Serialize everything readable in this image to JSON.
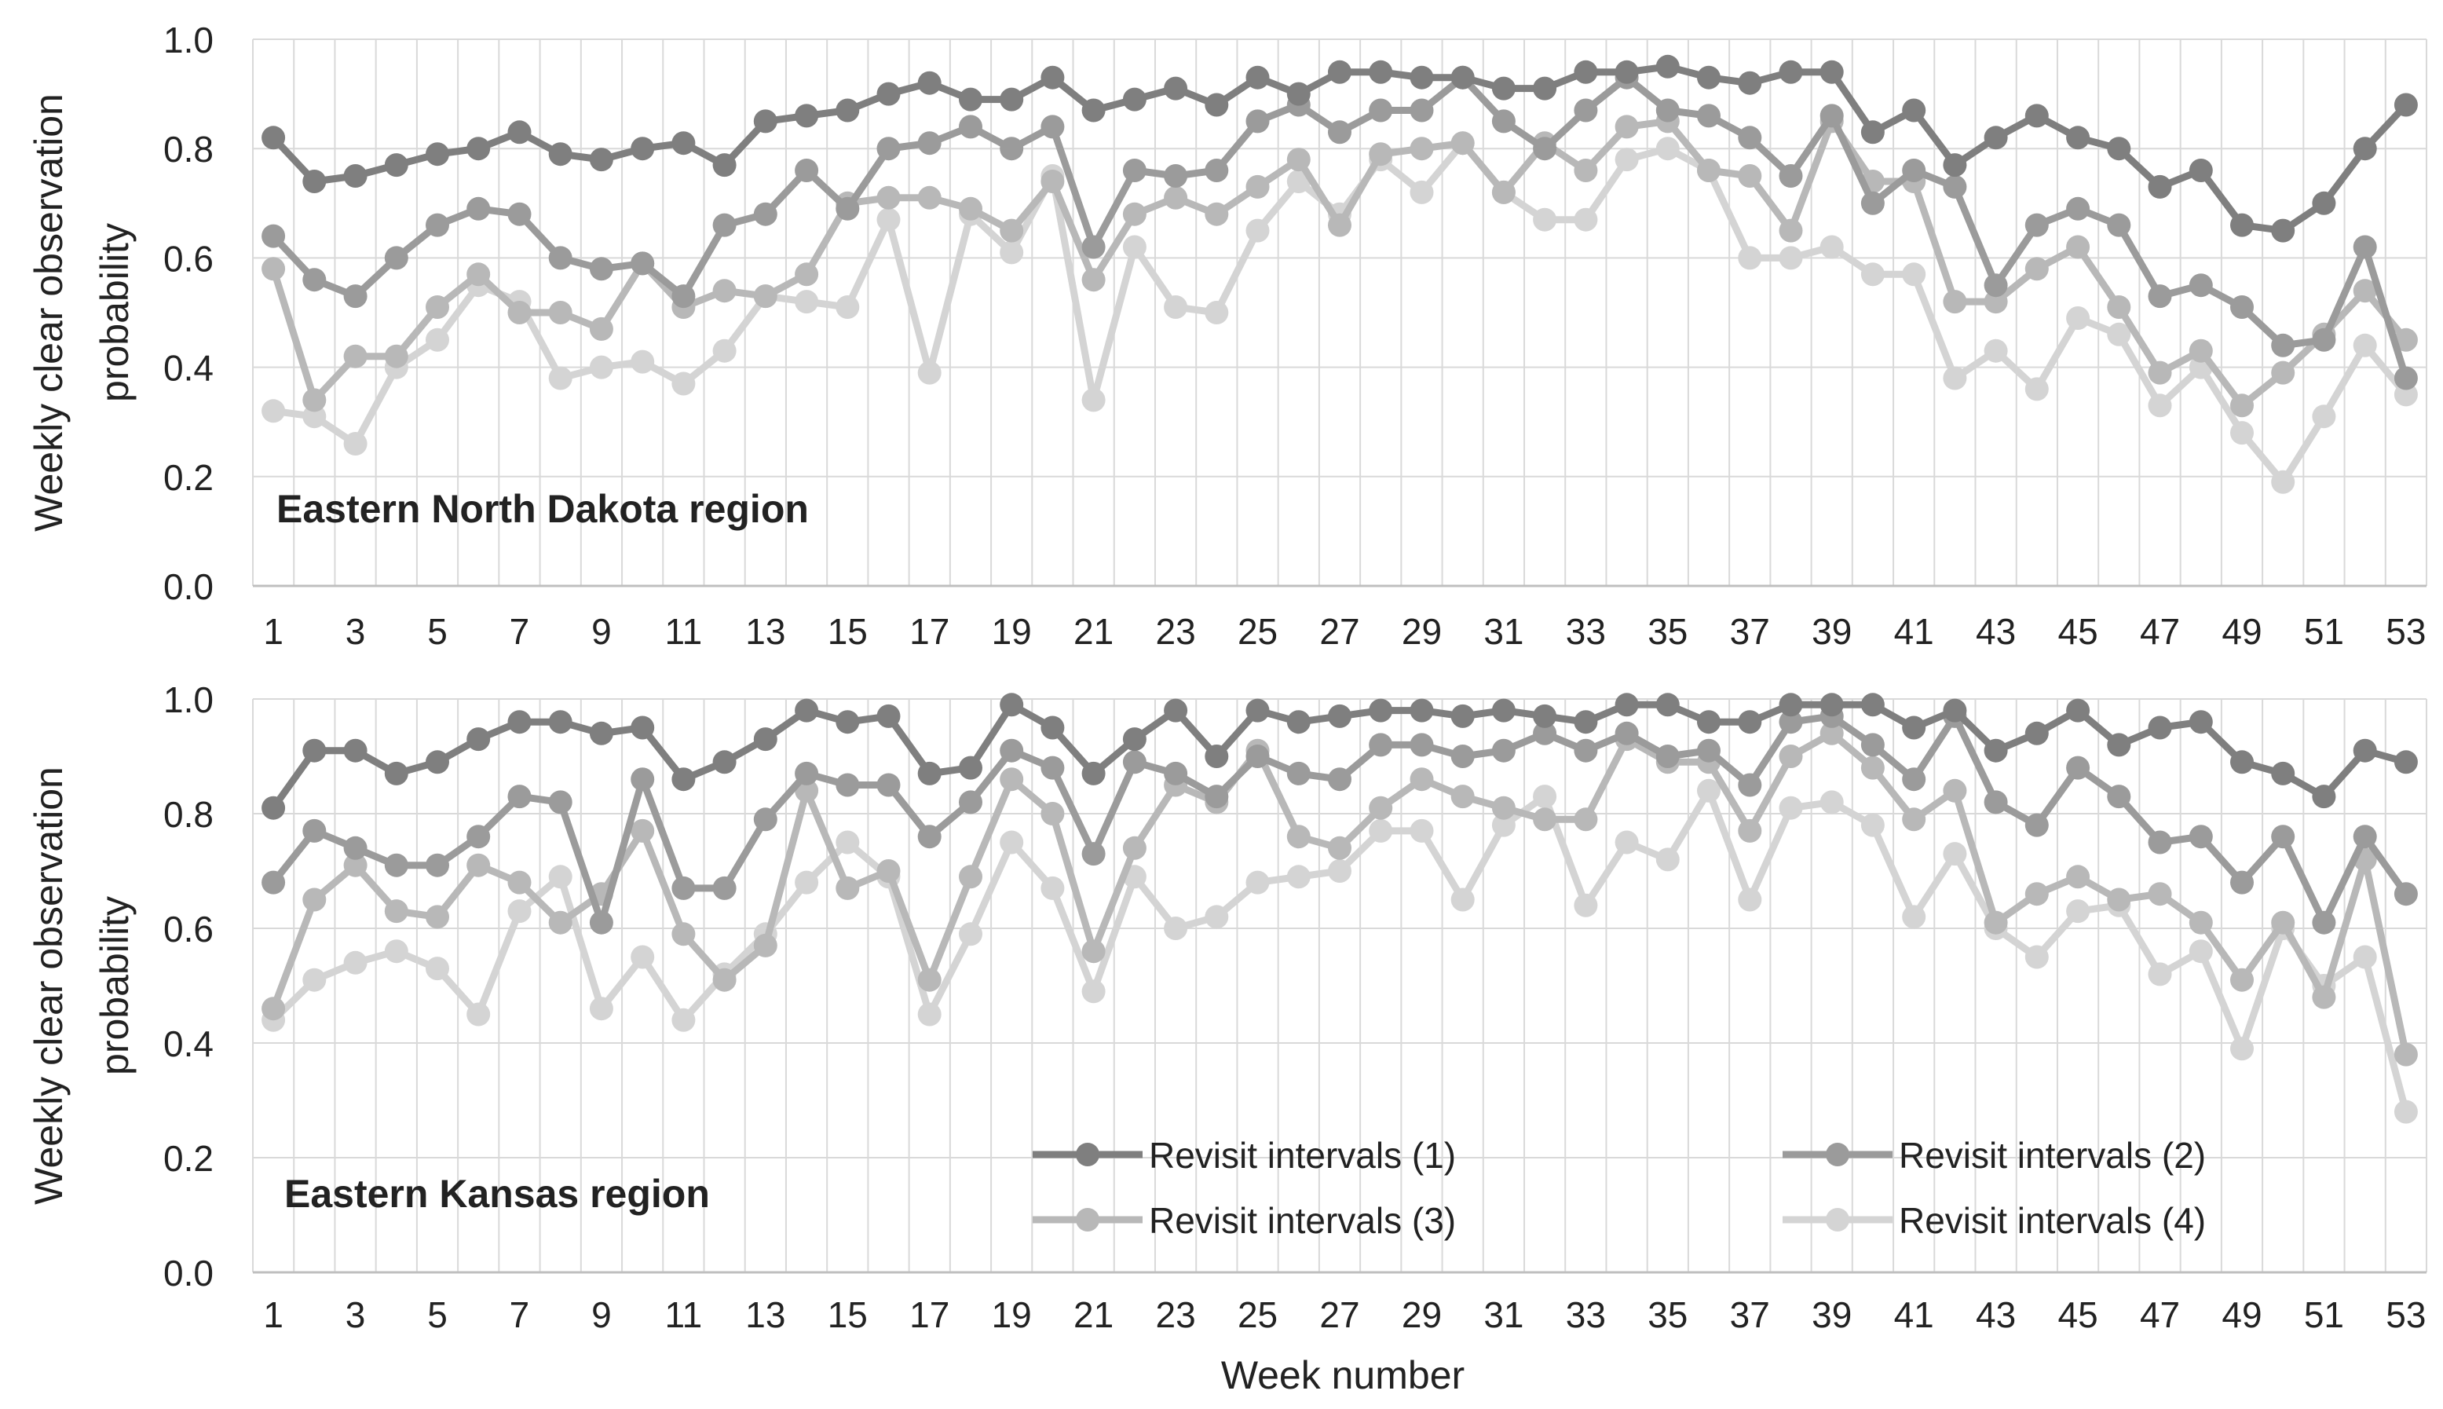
{
  "figure": {
    "xlabel": "Week number"
  },
  "colors": {
    "series": [
      "#7f7f7f",
      "#9b9b9b",
      "#b8b8b8",
      "#d4d4d4"
    ],
    "grid": "#d9d9d9",
    "axis": "#bfbfbf",
    "text": "#222222"
  },
  "chart_data": [
    {
      "type": "line",
      "title": "Eastern North Dakota region",
      "ylabel_line1": "Weekly clear observation",
      "ylabel_line2": "probability",
      "xlabel": "",
      "ylim": [
        0,
        1
      ],
      "yticks": [
        "0.0",
        "0.2",
        "0.4",
        "0.6",
        "0.8",
        "1.0"
      ],
      "xticks": [
        "1",
        "3",
        "5",
        "7",
        "9",
        "11",
        "13",
        "15",
        "17",
        "19",
        "21",
        "23",
        "25",
        "27",
        "29",
        "31",
        "33",
        "35",
        "37",
        "39",
        "41",
        "43",
        "45",
        "47",
        "49",
        "51",
        "53"
      ],
      "x": [
        1,
        2,
        3,
        4,
        5,
        6,
        7,
        8,
        9,
        10,
        11,
        12,
        13,
        14,
        15,
        16,
        17,
        18,
        19,
        20,
        21,
        22,
        23,
        24,
        25,
        26,
        27,
        28,
        29,
        30,
        31,
        32,
        33,
        34,
        35,
        36,
        37,
        38,
        39,
        40,
        41,
        42,
        43,
        44,
        45,
        46,
        47,
        48,
        49,
        50,
        51,
        52,
        53
      ],
      "series": [
        {
          "name": "Revisit intervals (1)",
          "values": [
            0.82,
            0.74,
            0.75,
            0.77,
            0.79,
            0.8,
            0.83,
            0.79,
            0.78,
            0.8,
            0.81,
            0.77,
            0.85,
            0.86,
            0.87,
            0.9,
            0.92,
            0.89,
            0.89,
            0.93,
            0.87,
            0.89,
            0.91,
            0.88,
            0.93,
            0.9,
            0.94,
            0.94,
            0.93,
            0.93,
            0.91,
            0.91,
            0.94,
            0.94,
            0.95,
            0.93,
            0.92,
            0.94,
            0.94,
            0.83,
            0.87,
            0.77,
            0.82,
            0.86,
            0.82,
            0.8,
            0.73,
            0.76,
            0.66,
            0.65,
            0.7,
            0.8,
            0.88
          ]
        },
        {
          "name": "Revisit intervals (2)",
          "values": [
            0.64,
            0.56,
            0.53,
            0.6,
            0.66,
            0.69,
            0.68,
            0.6,
            0.58,
            0.59,
            0.53,
            0.66,
            0.68,
            0.76,
            0.69,
            0.8,
            0.81,
            0.84,
            0.8,
            0.84,
            0.62,
            0.76,
            0.75,
            0.76,
            0.85,
            0.88,
            0.83,
            0.87,
            0.87,
            0.93,
            0.85,
            0.8,
            0.87,
            0.93,
            0.87,
            0.86,
            0.82,
            0.75,
            0.86,
            0.7,
            0.76,
            0.73,
            0.55,
            0.66,
            0.69,
            0.66,
            0.53,
            0.55,
            0.51,
            0.44,
            0.45,
            0.62,
            0.38
          ]
        },
        {
          "name": "Revisit intervals (3)",
          "values": [
            0.58,
            0.34,
            0.42,
            0.42,
            0.51,
            0.57,
            0.5,
            0.5,
            0.47,
            0.59,
            0.51,
            0.54,
            0.53,
            0.57,
            0.7,
            0.71,
            0.71,
            0.69,
            0.65,
            0.74,
            0.56,
            0.68,
            0.71,
            0.68,
            0.73,
            0.78,
            0.66,
            0.79,
            0.8,
            0.81,
            0.72,
            0.81,
            0.76,
            0.84,
            0.85,
            0.76,
            0.75,
            0.65,
            0.85,
            0.74,
            0.74,
            0.52,
            0.52,
            0.58,
            0.62,
            0.51,
            0.39,
            0.43,
            0.33,
            0.39,
            0.46,
            0.54,
            0.45
          ]
        },
        {
          "name": "Revisit intervals (4)",
          "values": [
            0.32,
            0.31,
            0.26,
            0.4,
            0.45,
            0.55,
            0.52,
            0.38,
            0.4,
            0.41,
            0.37,
            0.43,
            0.53,
            0.52,
            0.51,
            0.67,
            0.39,
            0.68,
            0.61,
            0.75,
            0.34,
            0.62,
            0.51,
            0.5,
            0.65,
            0.74,
            0.68,
            0.78,
            0.72,
            0.81,
            0.72,
            0.67,
            0.67,
            0.78,
            0.8,
            0.76,
            0.6,
            0.6,
            0.62,
            0.57,
            0.57,
            0.38,
            0.43,
            0.36,
            0.49,
            0.46,
            0.33,
            0.4,
            0.28,
            0.19,
            0.31,
            0.44,
            0.35
          ]
        }
      ]
    },
    {
      "type": "line",
      "title": "Eastern Kansas region",
      "ylabel_line1": "Weekly clear observation",
      "ylabel_line2": "probability",
      "xlabel": "Week number",
      "ylim": [
        0,
        1
      ],
      "yticks": [
        "0.0",
        "0.2",
        "0.4",
        "0.6",
        "0.8",
        "1.0"
      ],
      "xticks": [
        "1",
        "3",
        "5",
        "7",
        "9",
        "11",
        "13",
        "15",
        "17",
        "19",
        "21",
        "23",
        "25",
        "27",
        "29",
        "31",
        "33",
        "35",
        "37",
        "39",
        "41",
        "43",
        "45",
        "47",
        "49",
        "51",
        "53"
      ],
      "x": [
        1,
        2,
        3,
        4,
        5,
        6,
        7,
        8,
        9,
        10,
        11,
        12,
        13,
        14,
        15,
        16,
        17,
        18,
        19,
        20,
        21,
        22,
        23,
        24,
        25,
        26,
        27,
        28,
        29,
        30,
        31,
        32,
        33,
        34,
        35,
        36,
        37,
        38,
        39,
        40,
        41,
        42,
        43,
        44,
        45,
        46,
        47,
        48,
        49,
        50,
        51,
        52,
        53
      ],
      "legend_position": "bottom-right",
      "series": [
        {
          "name": "Revisit intervals (1)",
          "values": [
            0.81,
            0.91,
            0.91,
            0.87,
            0.89,
            0.93,
            0.96,
            0.96,
            0.94,
            0.95,
            0.86,
            0.89,
            0.93,
            0.98,
            0.96,
            0.97,
            0.87,
            0.88,
            0.99,
            0.95,
            0.87,
            0.93,
            0.98,
            0.9,
            0.98,
            0.96,
            0.97,
            0.98,
            0.98,
            0.97,
            0.98,
            0.97,
            0.96,
            0.99,
            0.99,
            0.96,
            0.96,
            0.99,
            0.99,
            0.99,
            0.95,
            0.98,
            0.91,
            0.94,
            0.98,
            0.92,
            0.95,
            0.96,
            0.89,
            0.87,
            0.83,
            0.91,
            0.89
          ]
        },
        {
          "name": "Revisit intervals (2)",
          "values": [
            0.68,
            0.77,
            0.74,
            0.71,
            0.71,
            0.76,
            0.83,
            0.82,
            0.61,
            0.86,
            0.67,
            0.67,
            0.79,
            0.87,
            0.85,
            0.85,
            0.76,
            0.82,
            0.91,
            0.88,
            0.73,
            0.89,
            0.87,
            0.83,
            0.9,
            0.87,
            0.86,
            0.92,
            0.92,
            0.9,
            0.91,
            0.94,
            0.91,
            0.94,
            0.9,
            0.91,
            0.85,
            0.96,
            0.97,
            0.92,
            0.86,
            0.97,
            0.82,
            0.78,
            0.88,
            0.83,
            0.75,
            0.76,
            0.68,
            0.76,
            0.61,
            0.76,
            0.66
          ]
        },
        {
          "name": "Revisit intervals (3)",
          "values": [
            0.46,
            0.65,
            0.71,
            0.63,
            0.62,
            0.71,
            0.68,
            0.61,
            0.66,
            0.77,
            0.59,
            0.51,
            0.57,
            0.84,
            0.67,
            0.7,
            0.51,
            0.69,
            0.86,
            0.8,
            0.56,
            0.74,
            0.85,
            0.82,
            0.91,
            0.76,
            0.74,
            0.81,
            0.86,
            0.83,
            0.81,
            0.79,
            0.79,
            0.93,
            0.89,
            0.89,
            0.77,
            0.9,
            0.94,
            0.88,
            0.79,
            0.84,
            0.61,
            0.66,
            0.69,
            0.65,
            0.66,
            0.61,
            0.51,
            0.61,
            0.48,
            0.72,
            0.38
          ]
        },
        {
          "name": "Revisit intervals (4)",
          "values": [
            0.44,
            0.51,
            0.54,
            0.56,
            0.53,
            0.45,
            0.63,
            0.69,
            0.46,
            0.55,
            0.44,
            0.52,
            0.59,
            0.68,
            0.75,
            0.69,
            0.45,
            0.59,
            0.75,
            0.67,
            0.49,
            0.69,
            0.6,
            0.62,
            0.68,
            0.69,
            0.7,
            0.77,
            0.77,
            0.65,
            0.78,
            0.83,
            0.64,
            0.75,
            0.72,
            0.84,
            0.65,
            0.81,
            0.82,
            0.78,
            0.62,
            0.73,
            0.6,
            0.55,
            0.63,
            0.64,
            0.52,
            0.56,
            0.39,
            0.6,
            0.5,
            0.55,
            0.28
          ]
        }
      ]
    }
  ]
}
